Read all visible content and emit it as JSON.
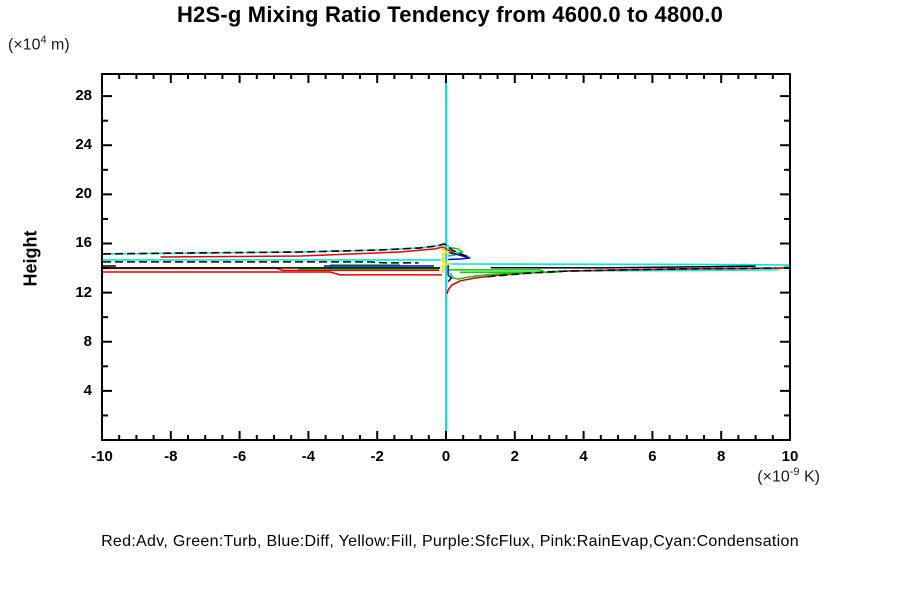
{
  "header": {
    "title": "H2S-g Mixing Ratio Tendency from 4600.0 to 4800.0"
  },
  "chart_data": {
    "type": "line",
    "title": "H2S-g Mixing Ratio Tendency from 4600.0 to 4800.0",
    "ylabel": "Height",
    "y_unit": {
      "pre": "(×10",
      "sup": "4",
      "post": " m)"
    },
    "x_unit": {
      "pre": "(×10",
      "sup": "-9",
      "post": " K)"
    },
    "x_range": [
      -10,
      10
    ],
    "y_range": [
      0,
      29.8
    ],
    "grid": false,
    "x_major_ticks": [
      {
        "v": -10,
        "label": "-10"
      },
      {
        "v": -8,
        "label": "-8"
      },
      {
        "v": -6,
        "label": "-6"
      },
      {
        "v": -4,
        "label": "-4"
      },
      {
        "v": -2,
        "label": "-2"
      },
      {
        "v": 0,
        "label": "0"
      },
      {
        "v": 2,
        "label": "2"
      },
      {
        "v": 4,
        "label": "4"
      },
      {
        "v": 6,
        "label": "6"
      },
      {
        "v": 8,
        "label": "8"
      },
      {
        "v": 10,
        "label": "10"
      }
    ],
    "x_minor_step": 0.5,
    "y_major_ticks": [
      {
        "v": 4,
        "label": "4"
      },
      {
        "v": 8,
        "label": "8"
      },
      {
        "v": 12,
        "label": "12"
      },
      {
        "v": 16,
        "label": "16"
      },
      {
        "v": 20,
        "label": "20"
      },
      {
        "v": 24,
        "label": "24"
      },
      {
        "v": 28,
        "label": "28"
      }
    ],
    "y_minor_step": 2,
    "legend_text": "Red:Adv,  Green:Turb,  Blue:Diff,  Yellow:Fill,  Purple:SfcFlux,  Pink:RainEvap,Cyan:Condensation",
    "legend_map": {
      "Red": "Adv",
      "Green": "Turb",
      "Blue": "Diff",
      "Yellow": "Fill",
      "Purple": "SfcFlux",
      "Pink": "RainEvap",
      "Cyan": "Condensation"
    },
    "colors": {
      "red": "#e60000",
      "green": "#00cc00",
      "blue": "#0000e6",
      "yellow": "#e6e600",
      "purple": "#b000b0",
      "pink": "#ff9ec8",
      "cyan": "#00e6e6",
      "black": "#000000"
    },
    "series": [
      {
        "name": "sfcflux-zero-line",
        "color": "#b000b0",
        "width": 1.6,
        "dash": "",
        "points": [
          [
            0,
            0
          ],
          [
            0,
            29.8
          ]
        ]
      },
      {
        "name": "rainevap-zero-line",
        "color": "#ff9ec8",
        "width": 1.6,
        "dash": "",
        "points": [
          [
            0,
            0
          ],
          [
            0,
            29.8
          ]
        ]
      },
      {
        "name": "condensation-vertical",
        "color": "#00e6e6",
        "width": 2,
        "dash": "",
        "points": [
          [
            0,
            0
          ],
          [
            0,
            29.8
          ]
        ]
      },
      {
        "name": "condensation-upper",
        "color": "#00e6e6",
        "width": 1.6,
        "dash": "",
        "points": [
          [
            -9.97,
            15.15
          ],
          [
            -7.15,
            15.23
          ],
          [
            -4.24,
            15.31
          ],
          [
            -1.92,
            15.47
          ],
          [
            -0.76,
            15.64
          ],
          [
            -0.26,
            15.8
          ],
          [
            -0.06,
            15.96
          ],
          [
            0.06,
            15.8
          ],
          [
            0.17,
            15.47
          ],
          [
            0.35,
            15.23
          ],
          [
            0.58,
            14.98
          ],
          [
            0.7,
            14.82
          ]
        ]
      },
      {
        "name": "condensation-left",
        "color": "#00e6e6",
        "width": 1.6,
        "dash": "",
        "points": [
          [
            -9.97,
            14.66
          ],
          [
            -0.15,
            14.66
          ]
        ]
      },
      {
        "name": "condensation-right-main",
        "color": "#00e6e6",
        "width": 1.6,
        "dash": "",
        "points": [
          [
            0,
            14.33
          ],
          [
            7.3,
            14.3
          ],
          [
            10,
            14.25
          ]
        ]
      },
      {
        "name": "condensation-right-lower",
        "color": "#00e6e6",
        "width": 1.6,
        "dash": "",
        "points": [
          [
            2.95,
            13.7
          ],
          [
            3.3,
            13.76
          ],
          [
            7.4,
            13.8
          ],
          [
            9.6,
            13.86
          ],
          [
            9.97,
            14.2
          ]
        ]
      },
      {
        "name": "adv-upper",
        "color": "#e60000",
        "width": 1.5,
        "dash": "",
        "points": [
          [
            -8.3,
            14.9
          ],
          [
            -4.2,
            14.98
          ],
          [
            -1.34,
            15.31
          ],
          [
            -0.32,
            15.56
          ],
          [
            -0.09,
            15.72
          ],
          [
            0.06,
            15.47
          ],
          [
            0.26,
            15.15
          ]
        ]
      },
      {
        "name": "adv-mid",
        "color": "#e60000",
        "width": 1.5,
        "dash": "",
        "points": [
          [
            -9.97,
            13.97
          ],
          [
            -4.9,
            13.97
          ],
          [
            -4.74,
            13.81
          ],
          [
            -0.2,
            13.81
          ]
        ]
      },
      {
        "name": "adv-low",
        "color": "#e60000",
        "width": 1.5,
        "dash": "",
        "points": [
          [
            -9.97,
            13.68
          ],
          [
            -3.37,
            13.68
          ],
          [
            -3.08,
            13.44
          ],
          [
            -0.12,
            13.44
          ]
        ]
      },
      {
        "name": "adv-lower-right",
        "color": "#e60000",
        "width": 1.6,
        "dash": "",
        "points": [
          [
            0.03,
            11.89
          ],
          [
            0.06,
            12.21
          ],
          [
            0.17,
            12.62
          ],
          [
            0.41,
            12.95
          ],
          [
            0.84,
            13.19
          ],
          [
            1.57,
            13.44
          ],
          [
            2.44,
            13.6
          ],
          [
            3.6,
            13.76
          ],
          [
            5.06,
            13.85
          ],
          [
            6.8,
            13.93
          ],
          [
            10,
            14.01
          ]
        ]
      },
      {
        "name": "turb-left",
        "color": "#00cc00",
        "width": 1.5,
        "dash": "",
        "points": [
          [
            -4.3,
            13.93
          ],
          [
            -0.2,
            13.93
          ]
        ]
      },
      {
        "name": "turb-left-upper-seg",
        "color": "#00cc00",
        "width": 1.5,
        "dash": "",
        "points": [
          [
            -3.37,
            14.25
          ],
          [
            -1.34,
            14.25
          ]
        ]
      },
      {
        "name": "turb-bump-upper",
        "color": "#00cc00",
        "width": 1.5,
        "dash": "",
        "points": [
          [
            0.03,
            15.47
          ],
          [
            0.17,
            15.64
          ],
          [
            0.35,
            15.56
          ],
          [
            0.47,
            15.31
          ],
          [
            0.26,
            15.07
          ],
          [
            0.06,
            14.98
          ]
        ]
      },
      {
        "name": "turb-right",
        "color": "#00cc00",
        "width": 1.5,
        "dash": "",
        "points": [
          [
            0.06,
            13.85
          ],
          [
            2.73,
            13.85
          ],
          [
            2.87,
            13.68
          ],
          [
            0.41,
            13.66
          ]
        ]
      },
      {
        "name": "turb-dip",
        "color": "#00cc00",
        "width": 1.5,
        "dash": "",
        "points": [
          [
            0.12,
            13.6
          ],
          [
            0.2,
            13.2
          ],
          [
            0.35,
            13.1
          ],
          [
            0.7,
            13.3
          ],
          [
            1.3,
            13.5
          ],
          [
            2.2,
            13.6
          ],
          [
            3.26,
            13.68
          ]
        ]
      },
      {
        "name": "diff-left",
        "color": "#0000e6",
        "width": 1.5,
        "dash": "",
        "points": [
          [
            -3.55,
            14.17
          ],
          [
            -0.35,
            14.17
          ]
        ]
      },
      {
        "name": "diff-wedge",
        "color": "#0000e6",
        "width": 1.6,
        "dash": "",
        "points": [
          [
            0,
            15.31
          ],
          [
            0.26,
            15.15
          ],
          [
            0.7,
            14.82
          ],
          [
            0.41,
            14.74
          ],
          [
            0.06,
            14.7
          ]
        ]
      },
      {
        "name": "diff-drop",
        "color": "#0000e6",
        "width": 1.6,
        "dash": "",
        "points": [
          [
            0.06,
            14.33
          ],
          [
            0.06,
            13.44
          ],
          [
            0.15,
            13.19
          ],
          [
            0.06,
            12.87
          ]
        ]
      },
      {
        "name": "fill-spike",
        "color": "#e6e600",
        "width": 1.8,
        "dash": "",
        "points": [
          [
            -0.09,
            13.6
          ],
          [
            -0.09,
            14.17
          ],
          [
            0.09,
            14.33
          ],
          [
            -0.09,
            14.5
          ],
          [
            -0.09,
            15.15
          ],
          [
            0.06,
            15.31
          ],
          [
            -0.09,
            15.47
          ],
          [
            -0.09,
            15.64
          ]
        ]
      },
      {
        "name": "total-mid-upper",
        "color": "#000000",
        "width": 1.5,
        "dash": "8,4",
        "points": [
          [
            -9.97,
            14.5
          ],
          [
            -2.2,
            14.5
          ],
          [
            -1.8,
            14.42
          ],
          [
            -0.8,
            14.42
          ]
        ]
      },
      {
        "name": "total-left-short",
        "color": "#000000",
        "width": 1.5,
        "dash": "",
        "points": [
          [
            -9.97,
            14.17
          ],
          [
            -9.6,
            14.17
          ]
        ]
      },
      {
        "name": "total-mid-lower",
        "color": "#000000",
        "width": 1.5,
        "dash": "",
        "points": [
          [
            -9.97,
            14.01
          ],
          [
            -0.17,
            14.01
          ]
        ]
      },
      {
        "name": "total-right-rising",
        "color": "#000000",
        "width": 1.5,
        "dash": "",
        "points": [
          [
            1.3,
            14.03
          ],
          [
            4.5,
            14.01
          ],
          [
            6.5,
            14.08
          ],
          [
            9.0,
            14.16
          ]
        ]
      },
      {
        "name": "total-upper-dashed",
        "color": "#000000",
        "width": 1.6,
        "dash": "8,4",
        "points": [
          [
            -9.97,
            15.15
          ],
          [
            -7.15,
            15.23
          ],
          [
            -4.24,
            15.31
          ],
          [
            -1.92,
            15.47
          ],
          [
            -0.76,
            15.64
          ],
          [
            -0.26,
            15.8
          ],
          [
            -0.06,
            15.96
          ],
          [
            0.06,
            15.8
          ],
          [
            0.17,
            15.47
          ],
          [
            0.35,
            15.23
          ],
          [
            0.58,
            14.98
          ],
          [
            0.7,
            14.82
          ]
        ]
      },
      {
        "name": "total-right-dashed",
        "color": "#000000",
        "width": 1.6,
        "dash": "8,4",
        "points": [
          [
            1.2,
            13.3
          ],
          [
            2.44,
            13.6
          ],
          [
            3.6,
            13.76
          ],
          [
            5.06,
            13.85
          ],
          [
            6.8,
            13.93
          ],
          [
            9.6,
            14.0
          ]
        ]
      }
    ]
  }
}
